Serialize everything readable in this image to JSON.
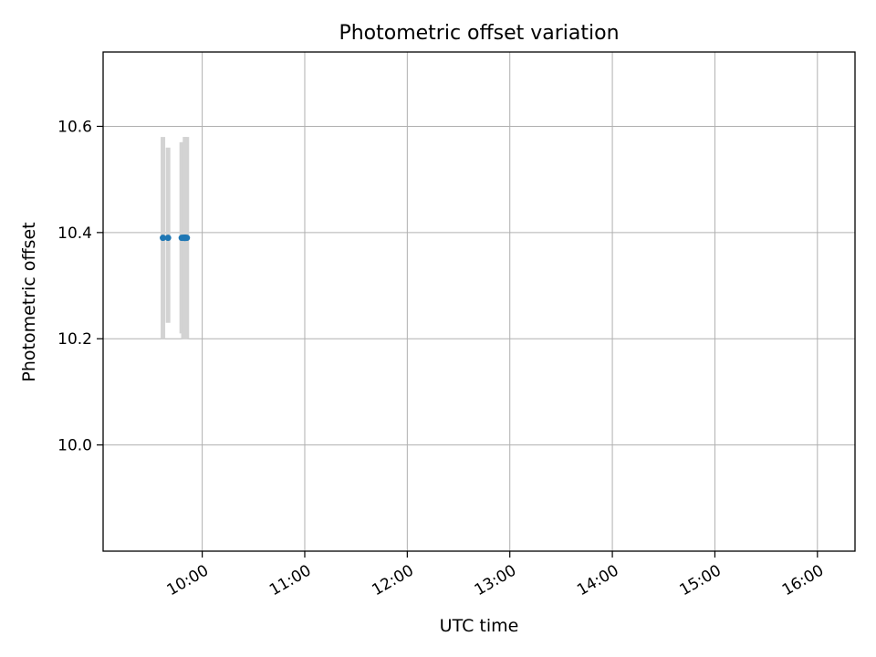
{
  "chart_data": {
    "type": "scatter",
    "title": "Photometric offset variation",
    "xlabel": "UTC time",
    "ylabel": "Photometric offset",
    "x_unit": "UTC hh:mm",
    "xlim": [
      "09:02",
      "16:22"
    ],
    "ylim": [
      9.8,
      10.74
    ],
    "x_ticks": [
      "10:00",
      "11:00",
      "12:00",
      "13:00",
      "14:00",
      "15:00",
      "16:00"
    ],
    "y_ticks": [
      "10.0",
      "10.2",
      "10.4",
      "10.6"
    ],
    "grid": true,
    "marker_color": "#1f77b4",
    "errorbar_color": "#d3d3d3",
    "points": [
      {
        "x": "09:37",
        "y": 10.39,
        "err_low": 10.2,
        "err_high": 10.58
      },
      {
        "x": "09:40",
        "y": 10.39,
        "err_low": 10.23,
        "err_high": 10.56
      },
      {
        "x": "09:50",
        "y": 10.39,
        "err_low": 10.2,
        "err_high": 10.58
      },
      {
        "x": "09:49",
        "y": 10.39,
        "err_low": 10.2,
        "err_high": 10.57
      },
      {
        "x": "09:50",
        "y": 10.39,
        "err_low": 10.21,
        "err_high": 10.57
      },
      {
        "x": "09:51",
        "y": 10.39,
        "err_low": 10.2,
        "err_high": 10.58
      },
      {
        "x": "09:50",
        "y": 10.39,
        "err_low": 10.21,
        "err_high": 10.57
      },
      {
        "x": "09:49",
        "y": 10.39,
        "err_low": 10.21,
        "err_high": 10.57
      },
      {
        "x": "09:50",
        "y": 10.39,
        "err_low": 10.2,
        "err_high": 10.58
      },
      {
        "x": "09:48",
        "y": 10.39,
        "err_low": 10.21,
        "err_high": 10.57
      },
      {
        "x": "09:50",
        "y": 10.39,
        "err_low": 10.2,
        "err_high": 10.57
      },
      {
        "x": "09:50",
        "y": 10.39,
        "err_low": 10.21,
        "err_high": 10.57
      }
    ]
  }
}
